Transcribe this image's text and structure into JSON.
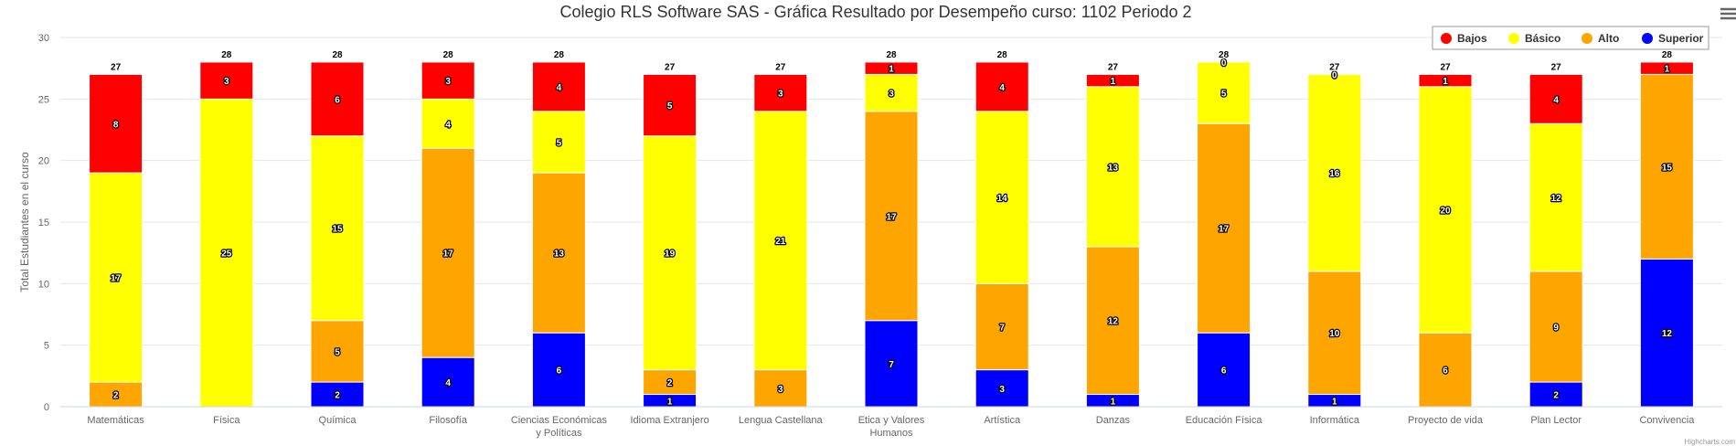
{
  "chart_data": {
    "type": "bar",
    "stacked": true,
    "title": "Colegio RLS Software SAS - Gráfica Resultado por Desempeño curso: 1102 Periodo 2",
    "ylabel": "Total Estudiantes en el curso",
    "xlabel": "",
    "ylim": [
      0,
      30
    ],
    "yticks": [
      0,
      5,
      10,
      15,
      20,
      25,
      30
    ],
    "grid": true,
    "legend_position": "top-right",
    "categories": [
      "Matemáticas",
      "Física",
      "Química",
      "Filosofía",
      "Ciencias Económicas y Políticas",
      "Idioma Extranjero",
      "Lengua Castellana",
      "Etica y Valores Humanos",
      "Artística",
      "Danzas",
      "Educación Física",
      "Informática",
      "Proyecto de vida",
      "Plan Lector",
      "Convivencia"
    ],
    "series": [
      {
        "name": "Bajos",
        "color": "#ff0000",
        "values": [
          8,
          3,
          6,
          3,
          4,
          5,
          3,
          1,
          4,
          1,
          0,
          0,
          1,
          4,
          1
        ]
      },
      {
        "name": "Básico",
        "color": "#ffff00",
        "values": [
          17,
          25,
          15,
          4,
          5,
          19,
          21,
          3,
          14,
          13,
          5,
          16,
          20,
          12,
          0
        ]
      },
      {
        "name": "Alto",
        "color": "#ffa500",
        "values": [
          2,
          0,
          5,
          17,
          13,
          2,
          3,
          17,
          7,
          12,
          17,
          10,
          6,
          9,
          15
        ]
      },
      {
        "name": "Superior",
        "color": "#0000ff",
        "values": [
          0,
          0,
          2,
          4,
          6,
          1,
          0,
          7,
          3,
          1,
          6,
          1,
          0,
          2,
          12
        ]
      }
    ],
    "totals": [
      27,
      28,
      28,
      28,
      28,
      27,
      27,
      28,
      28,
      27,
      28,
      27,
      27,
      27,
      28
    ]
  },
  "credit": "Highcharts.com",
  "menu_icon": "hamburger-menu-icon"
}
